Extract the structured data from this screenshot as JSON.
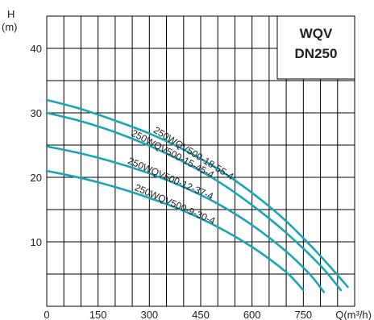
{
  "chart_data": {
    "type": "line",
    "title": [
      "WQV",
      "DN250"
    ],
    "xlabel": "Q(m³/h)",
    "ylabel": [
      "H",
      "(m)"
    ],
    "xlim": [
      0,
      900
    ],
    "ylim": [
      0,
      45
    ],
    "x_ticks": [
      "0",
      "150",
      "300",
      "450",
      "600",
      "750"
    ],
    "y_ticks": [
      "10",
      "20",
      "30",
      "40"
    ],
    "grid": true,
    "colors": {
      "curve": "#1aa5b5",
      "grid": "#000000"
    },
    "series": [
      {
        "name": "250WQV500-18-55-4",
        "points": [
          [
            0,
            32
          ],
          [
            100,
            30.6
          ],
          [
            200,
            28.8
          ],
          [
            300,
            26.8
          ],
          [
            400,
            24.3
          ],
          [
            500,
            21.3
          ],
          [
            600,
            17.6
          ],
          [
            700,
            13.2
          ],
          [
            800,
            7.8
          ],
          [
            880,
            3.0
          ]
        ]
      },
      {
        "name": "250WQV500-15-45-4",
        "points": [
          [
            0,
            30
          ],
          [
            100,
            28.7
          ],
          [
            200,
            27
          ],
          [
            300,
            24.9
          ],
          [
            400,
            22.4
          ],
          [
            500,
            19.4
          ],
          [
            600,
            15.7
          ],
          [
            700,
            11.4
          ],
          [
            800,
            6.3
          ],
          [
            860,
            2.5
          ]
        ]
      },
      {
        "name": "250WQV500-12-37-4",
        "points": [
          [
            0,
            24.8
          ],
          [
            100,
            23.7
          ],
          [
            200,
            22.3
          ],
          [
            300,
            20.6
          ],
          [
            400,
            18.5
          ],
          [
            500,
            15.9
          ],
          [
            600,
            12.6
          ],
          [
            700,
            8.5
          ],
          [
            770,
            4.9
          ],
          [
            810,
            2.2
          ]
        ]
      },
      {
        "name": "250WQV500-9-30-4",
        "points": [
          [
            0,
            21
          ],
          [
            100,
            19.9
          ],
          [
            200,
            18.5
          ],
          [
            300,
            16.8
          ],
          [
            400,
            14.8
          ],
          [
            500,
            12.3
          ],
          [
            600,
            9.2
          ],
          [
            700,
            5.3
          ],
          [
            750,
            2.5
          ]
        ]
      }
    ]
  }
}
